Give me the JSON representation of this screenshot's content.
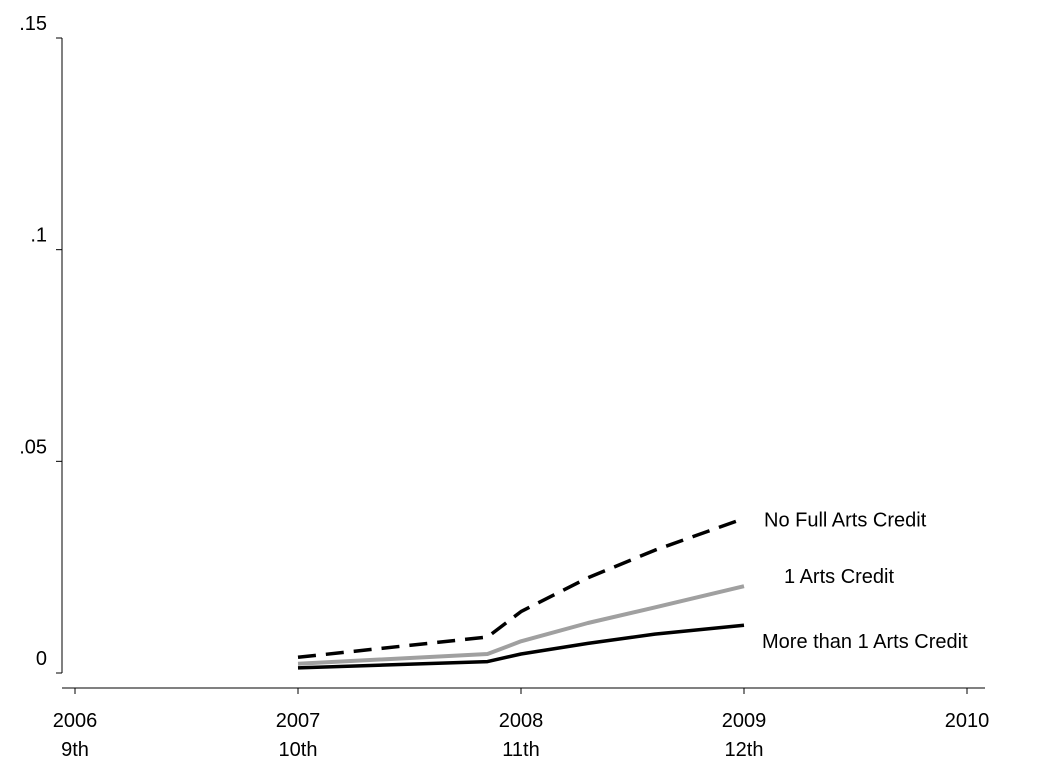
{
  "chart_data": {
    "type": "line",
    "title": "",
    "xlabel": "",
    "ylabel": "",
    "xlim": [
      2006,
      2010
    ],
    "ylim": [
      0,
      0.15
    ],
    "grid": false,
    "legend": "inline-labels-right",
    "x_ticks": [
      {
        "value": 2006,
        "year": "2006",
        "grade": "9th"
      },
      {
        "value": 2007,
        "year": "2007",
        "grade": "10th"
      },
      {
        "value": 2008,
        "year": "2008",
        "grade": "11th"
      },
      {
        "value": 2009,
        "year": "2009",
        "grade": "12th"
      },
      {
        "value": 2010,
        "year": "2010",
        "grade": ""
      }
    ],
    "y_ticks": [
      {
        "value": 0,
        "label": "0"
      },
      {
        "value": 0.05,
        "label": ".05"
      },
      {
        "value": 0.1,
        "label": ".1"
      },
      {
        "value": 0.15,
        "label": ".15"
      }
    ],
    "series": [
      {
        "name": "No Full Arts Credit",
        "color": "#000000",
        "dash": "dashed",
        "x": [
          2007,
          2007.85,
          2008,
          2008.3,
          2008.6,
          2009
        ],
        "y": [
          0.0037,
          0.0085,
          0.0145,
          0.0225,
          0.029,
          0.0365
        ]
      },
      {
        "name": "1 Arts Credit",
        "color": "#a0a0a0",
        "dash": "solid",
        "x": [
          2007,
          2007.85,
          2008,
          2008.3,
          2008.6,
          2009
        ],
        "y": [
          0.0022,
          0.0045,
          0.0075,
          0.0118,
          0.0155,
          0.0205
        ]
      },
      {
        "name": "More than 1 Arts Credit",
        "color": "#000000",
        "dash": "solid",
        "x": [
          2007,
          2007.85,
          2008,
          2008.3,
          2008.6,
          2009
        ],
        "y": [
          0.0012,
          0.0027,
          0.0045,
          0.007,
          0.0092,
          0.0113
        ]
      }
    ]
  }
}
